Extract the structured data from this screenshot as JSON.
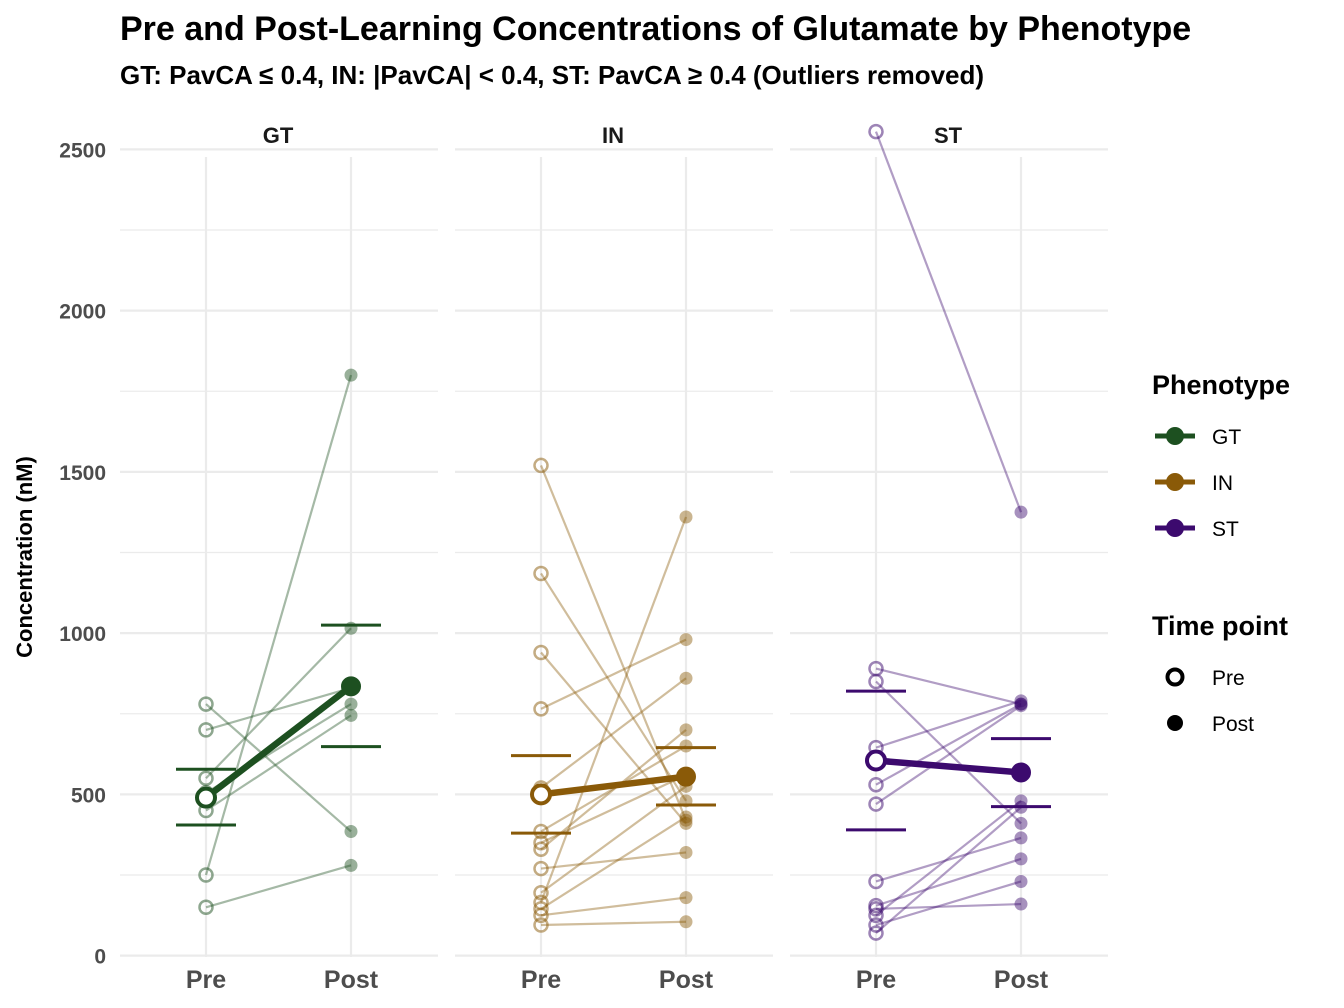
{
  "chart_data": {
    "type": "line",
    "title": "Pre and Post-Learning Concentrations of Glutamate by Phenotype",
    "subtitle": "GT: PavCA ≤ 0.4, IN: |PavCA| < 0.4, ST: PavCA ≥ 0.4 (Outliers removed)",
    "ylabel": "Concentration (nM)",
    "ylim": [
      0,
      2500
    ],
    "yticks": [
      0,
      500,
      1000,
      1500,
      2000,
      2500
    ],
    "x_categories": [
      "Pre",
      "Post"
    ],
    "grid": true,
    "colors": {
      "GT": "#1d5020",
      "IN": "#8a5a08",
      "ST": "#3c0a6e"
    },
    "panels": [
      {
        "name": "GT",
        "individuals": [
          [
            780,
            385
          ],
          [
            700,
            830
          ],
          [
            550,
            1015
          ],
          [
            505,
            780
          ],
          [
            450,
            745
          ],
          [
            250,
            1800
          ],
          [
            150,
            280
          ]
        ],
        "mean": {
          "pre": 490,
          "post": 835
        },
        "error": {
          "pre": [
            405,
            578
          ],
          "post": [
            648,
            1025
          ]
        }
      },
      {
        "name": "IN",
        "individuals": [
          [
            1520,
            420
          ],
          [
            1185,
            480
          ],
          [
            940,
            410
          ],
          [
            765,
            980
          ],
          [
            520,
            860
          ],
          [
            385,
            650
          ],
          [
            350,
            560
          ],
          [
            330,
            700
          ],
          [
            270,
            320
          ],
          [
            195,
            525
          ],
          [
            165,
            1360
          ],
          [
            145,
            430
          ],
          [
            125,
            180
          ],
          [
            95,
            105
          ]
        ],
        "mean": {
          "pre": 500,
          "post": 555
        },
        "error": {
          "pre": [
            380,
            620
          ],
          "post": [
            467,
            645
          ]
        }
      },
      {
        "name": "ST",
        "individuals": [
          [
            2555,
            1375
          ],
          [
            890,
            780
          ],
          [
            850,
            410
          ],
          [
            645,
            790
          ],
          [
            530,
            780
          ],
          [
            470,
            775
          ],
          [
            230,
            365
          ],
          [
            155,
            300
          ],
          [
            145,
            160
          ],
          [
            125,
            480
          ],
          [
            95,
            230
          ],
          [
            70,
            460
          ]
        ],
        "mean": {
          "pre": 605,
          "post": 568
        },
        "error": {
          "pre": [
            390,
            820
          ],
          "post": [
            462,
            673
          ]
        }
      }
    ],
    "legend": {
      "placement": "right",
      "phenotype_title": "Phenotype",
      "phenotype_items": [
        "GT",
        "IN",
        "ST"
      ],
      "timepoint_title": "Time point",
      "timepoint_items": [
        "Pre",
        "Post"
      ]
    }
  }
}
